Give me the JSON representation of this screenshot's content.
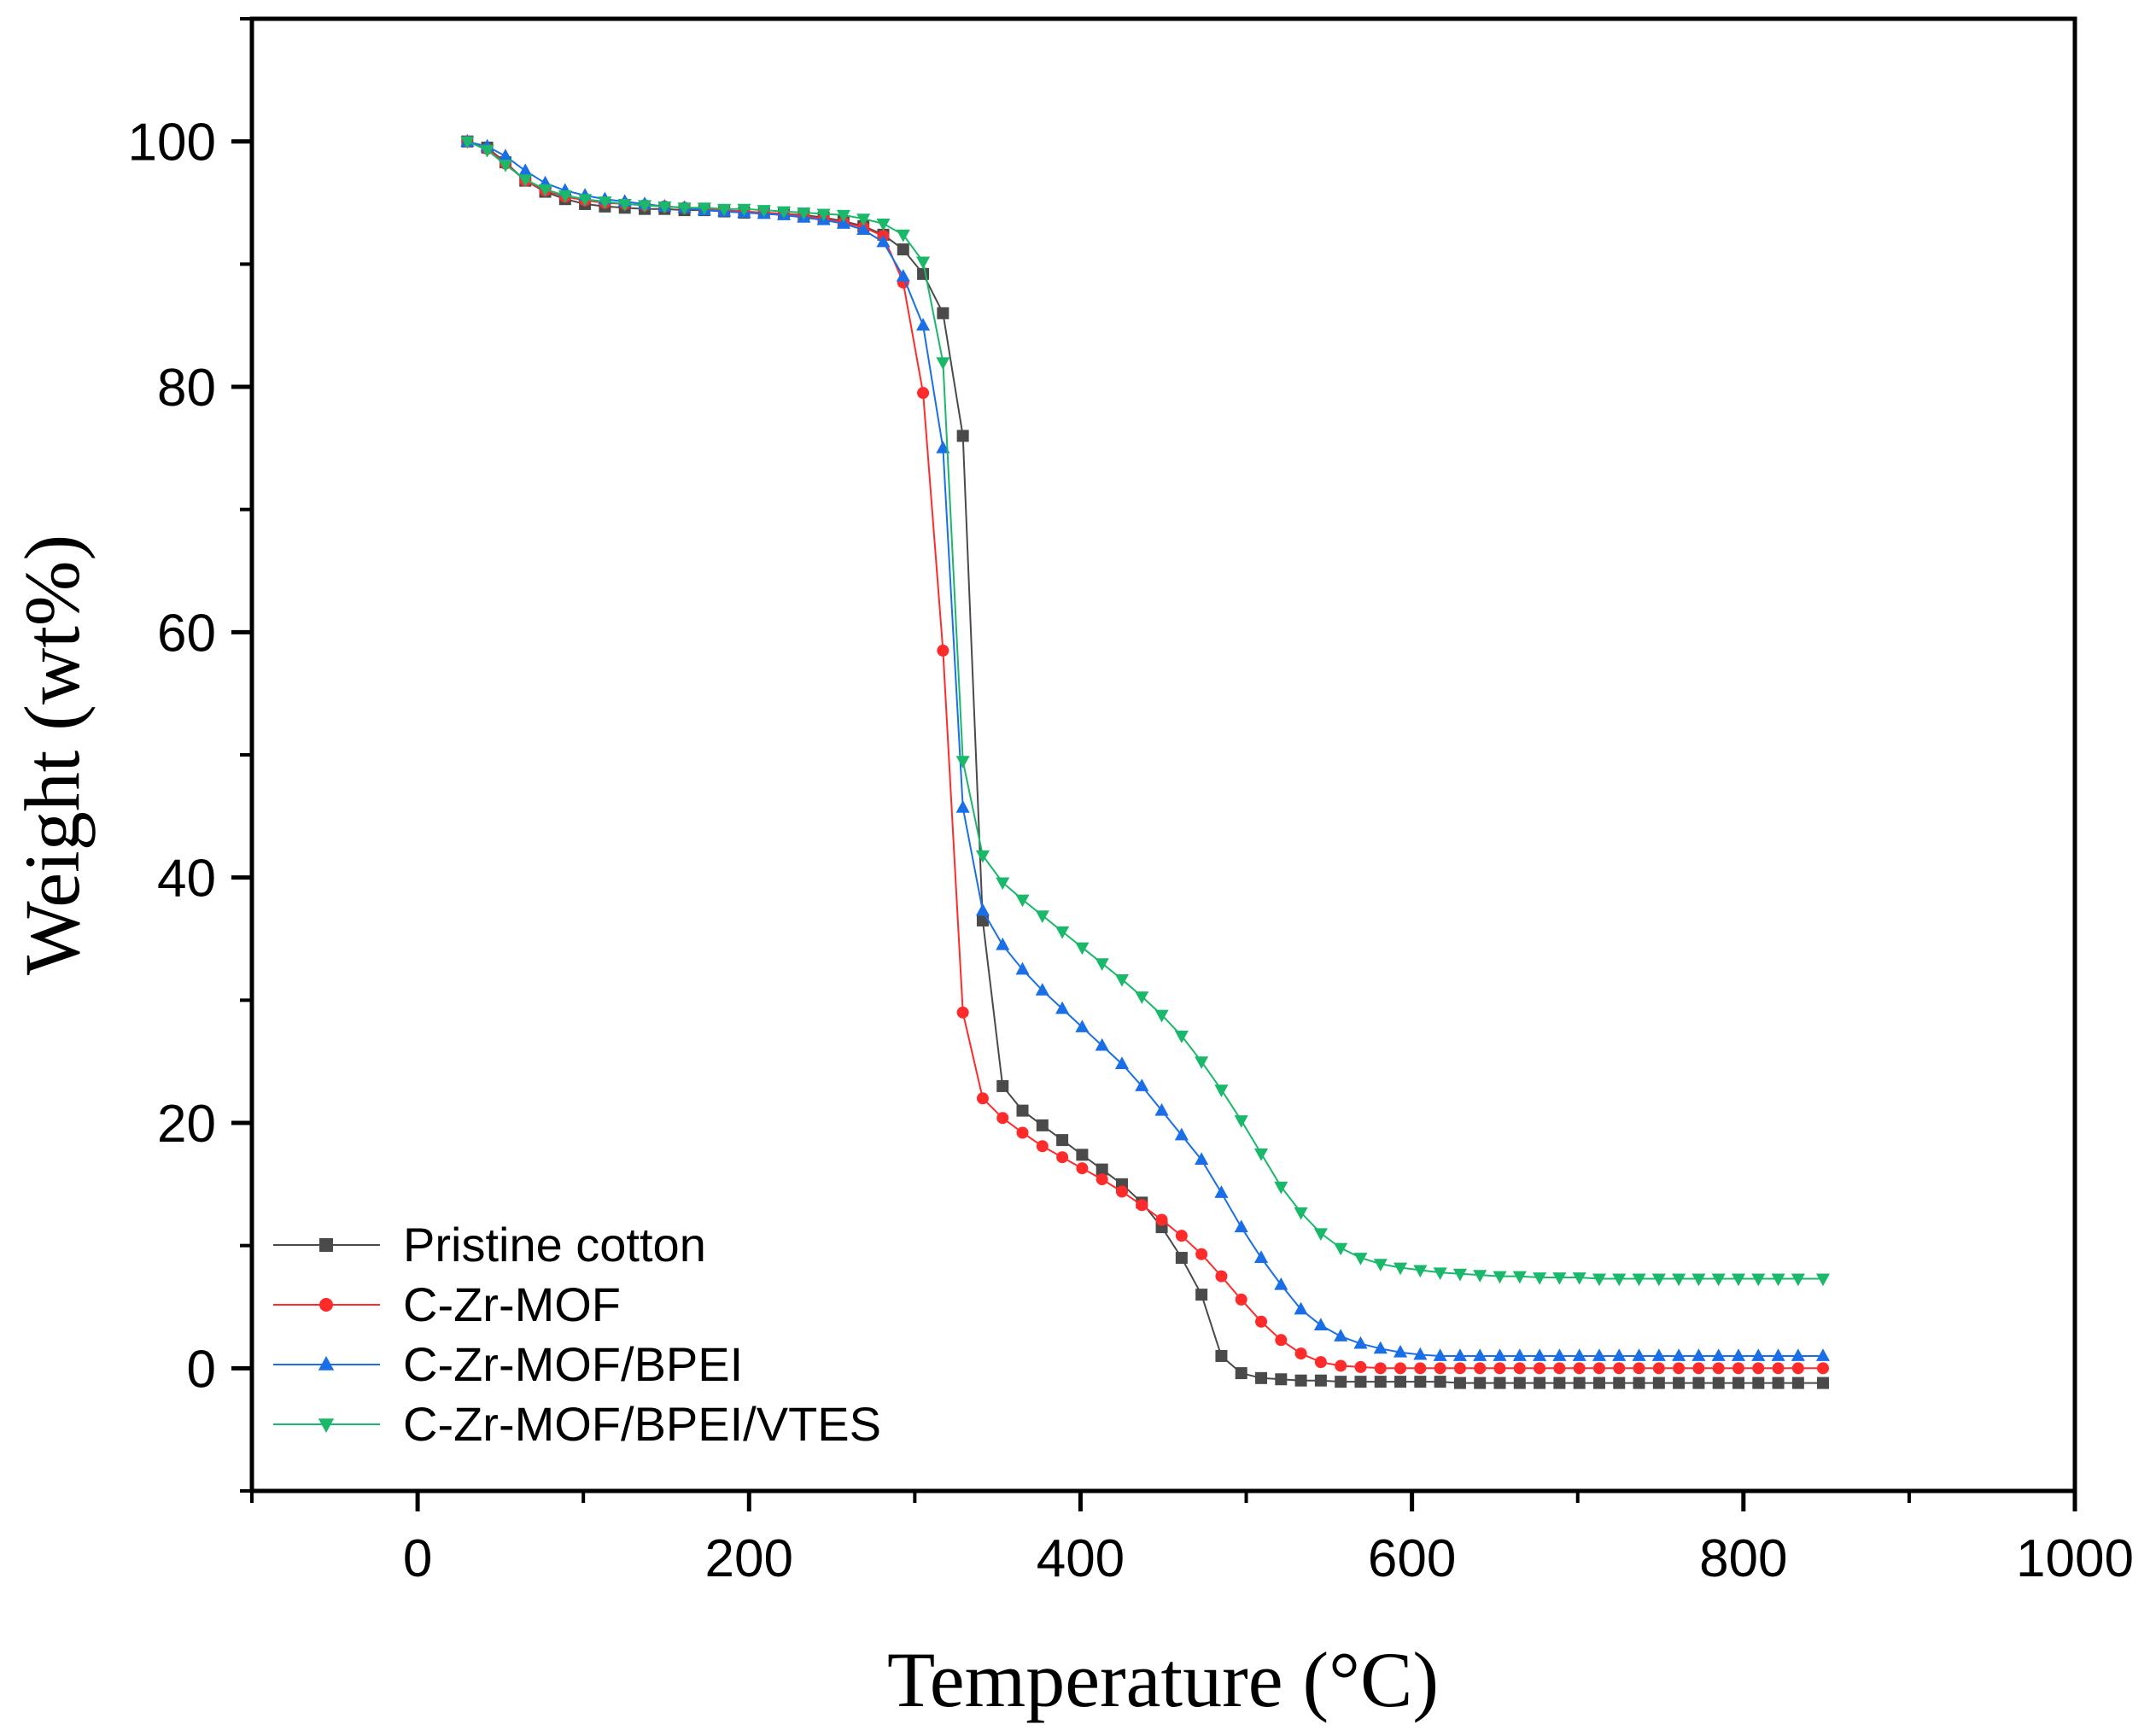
{
  "chart_data": {
    "type": "line",
    "title": "",
    "xlabel": "Temperature (°C)",
    "ylabel": "Weight (wt%)",
    "xlim": [
      -100,
      1000
    ],
    "ylim": [
      -10,
      110
    ],
    "xticks": [
      0,
      200,
      400,
      600,
      800,
      1000
    ],
    "yticks": [
      0,
      20,
      40,
      60,
      80,
      100
    ],
    "xtick_labels": [
      "0",
      "200",
      "400",
      "600",
      "800",
      "1000"
    ],
    "ytick_labels": [
      "0",
      "20",
      "40",
      "60",
      "80",
      "100"
    ],
    "legend_position": "bottom-left",
    "series": [
      {
        "name": "Pristine cotton",
        "color": "#4a4a4a",
        "marker": "square",
        "x": [
          30,
          42,
          53,
          65,
          77,
          89,
          101,
          113,
          125,
          137,
          149,
          161,
          173,
          185,
          197,
          209,
          221,
          233,
          245,
          257,
          269,
          281,
          293,
          305,
          317,
          329,
          341,
          353,
          365,
          377,
          389,
          401,
          413,
          425,
          437,
          449,
          461,
          473,
          485,
          497,
          509,
          521,
          533,
          545,
          557,
          569,
          581,
          593,
          605,
          617,
          629,
          641,
          653,
          665,
          677,
          689,
          701,
          713,
          725,
          737,
          749,
          761,
          773,
          785,
          797,
          809,
          821,
          833,
          848
        ],
        "y": [
          100,
          99.5,
          98.3,
          96.8,
          95.9,
          95.3,
          94.9,
          94.7,
          94.6,
          94.5,
          94.5,
          94.4,
          94.4,
          94.3,
          94.2,
          94.2,
          94.1,
          94,
          93.8,
          93.5,
          93.1,
          92.4,
          91.2,
          89.2,
          86,
          76,
          36.5,
          23,
          21,
          19.8,
          18.6,
          17.4,
          16.2,
          15,
          13.5,
          11.5,
          9,
          6,
          1,
          -0.4,
          -0.8,
          -0.9,
          -1,
          -1,
          -1.1,
          -1.1,
          -1.1,
          -1.1,
          -1.1,
          -1.1,
          -1.2,
          -1.2,
          -1.2,
          -1.2,
          -1.2,
          -1.2,
          -1.2,
          -1.2,
          -1.2,
          -1.2,
          -1.2,
          -1.2,
          -1.2,
          -1.2,
          -1.2,
          -1.2,
          -1.2,
          -1.2,
          -1.2
        ]
      },
      {
        "name": "C-Zr-MOF",
        "color": "#ff2a2a",
        "marker": "circle",
        "x": [
          30,
          42,
          53,
          65,
          77,
          89,
          101,
          113,
          125,
          137,
          149,
          161,
          173,
          185,
          197,
          209,
          221,
          233,
          245,
          257,
          269,
          281,
          293,
          305,
          317,
          329,
          341,
          353,
          365,
          377,
          389,
          401,
          413,
          425,
          437,
          449,
          461,
          473,
          485,
          497,
          509,
          521,
          533,
          545,
          557,
          569,
          581,
          593,
          605,
          617,
          629,
          641,
          653,
          665,
          677,
          689,
          701,
          713,
          725,
          737,
          749,
          761,
          773,
          785,
          797,
          809,
          821,
          833,
          848
        ],
        "y": [
          100,
          99.4,
          98.2,
          96.8,
          96,
          95.5,
          95.2,
          95,
          94.9,
          94.8,
          94.7,
          94.6,
          94.5,
          94.4,
          94.3,
          94.2,
          94.1,
          93.9,
          93.7,
          93.4,
          93,
          92.3,
          88.5,
          79.5,
          58.5,
          29,
          22,
          20.4,
          19.2,
          18.1,
          17.2,
          16.3,
          15.4,
          14.4,
          13.3,
          12.1,
          10.8,
          9.3,
          7.5,
          5.6,
          3.8,
          2.3,
          1.2,
          0.5,
          0.2,
          0.1,
          0,
          0,
          0,
          0,
          0,
          0,
          0,
          0,
          0,
          0,
          0,
          0,
          0,
          0,
          0,
          0,
          0,
          0,
          0,
          0,
          0,
          0,
          0
        ]
      },
      {
        "name": "C-Zr-MOF/BPEI",
        "color": "#1a6fe8",
        "marker": "triangle-up",
        "x": [
          30,
          42,
          53,
          65,
          77,
          89,
          101,
          113,
          125,
          137,
          149,
          161,
          173,
          185,
          197,
          209,
          221,
          233,
          245,
          257,
          269,
          281,
          293,
          305,
          317,
          329,
          341,
          353,
          365,
          377,
          389,
          401,
          413,
          425,
          437,
          449,
          461,
          473,
          485,
          497,
          509,
          521,
          533,
          545,
          557,
          569,
          581,
          593,
          605,
          617,
          629,
          641,
          653,
          665,
          677,
          689,
          701,
          713,
          725,
          737,
          749,
          761,
          773,
          785,
          797,
          809,
          821,
          833,
          848
        ],
        "y": [
          100,
          99.6,
          98.8,
          97.6,
          96.6,
          96,
          95.6,
          95.3,
          95.1,
          94.9,
          94.7,
          94.6,
          94.4,
          94.3,
          94.2,
          94.1,
          94,
          93.8,
          93.6,
          93.3,
          92.8,
          91.8,
          89,
          85,
          75,
          45.7,
          37.3,
          34.5,
          32.5,
          30.8,
          29.3,
          27.8,
          26.3,
          24.8,
          23,
          21,
          19,
          17,
          14.3,
          11.5,
          9,
          6.8,
          4.8,
          3.5,
          2.6,
          2,
          1.6,
          1.3,
          1.1,
          1,
          1,
          1,
          1,
          1,
          1,
          1,
          1,
          1,
          1,
          1,
          1,
          1,
          1,
          1,
          1,
          1,
          1,
          1,
          1
        ]
      },
      {
        "name": "C-Zr-MOF/BPEI/VTES",
        "color": "#19b86a",
        "marker": "triangle-down",
        "x": [
          30,
          42,
          53,
          65,
          77,
          89,
          101,
          113,
          125,
          137,
          149,
          161,
          173,
          185,
          197,
          209,
          221,
          233,
          245,
          257,
          269,
          281,
          293,
          305,
          317,
          329,
          341,
          353,
          365,
          377,
          389,
          401,
          413,
          425,
          437,
          449,
          461,
          473,
          485,
          497,
          509,
          521,
          533,
          545,
          557,
          569,
          581,
          593,
          605,
          617,
          629,
          641,
          653,
          665,
          677,
          689,
          701,
          713,
          725,
          737,
          749,
          761,
          773,
          785,
          797,
          809,
          821,
          833,
          848
        ],
        "y": [
          100,
          99.3,
          98.1,
          96.9,
          96.1,
          95.6,
          95.3,
          95.1,
          94.9,
          94.8,
          94.7,
          94.6,
          94.6,
          94.5,
          94.5,
          94.4,
          94.3,
          94.2,
          94.1,
          94,
          93.7,
          93.3,
          92.4,
          90.2,
          82,
          49.5,
          41.8,
          39.6,
          38.2,
          36.9,
          35.6,
          34.3,
          33,
          31.7,
          30.3,
          28.8,
          27.1,
          25,
          22.7,
          20.2,
          17.5,
          14.8,
          12.7,
          11,
          9.8,
          9,
          8.5,
          8.2,
          8,
          7.8,
          7.7,
          7.6,
          7.5,
          7.5,
          7.4,
          7.4,
          7.4,
          7.3,
          7.3,
          7.3,
          7.3,
          7.3,
          7.3,
          7.3,
          7.3,
          7.3,
          7.3,
          7.3,
          7.3
        ]
      }
    ]
  }
}
